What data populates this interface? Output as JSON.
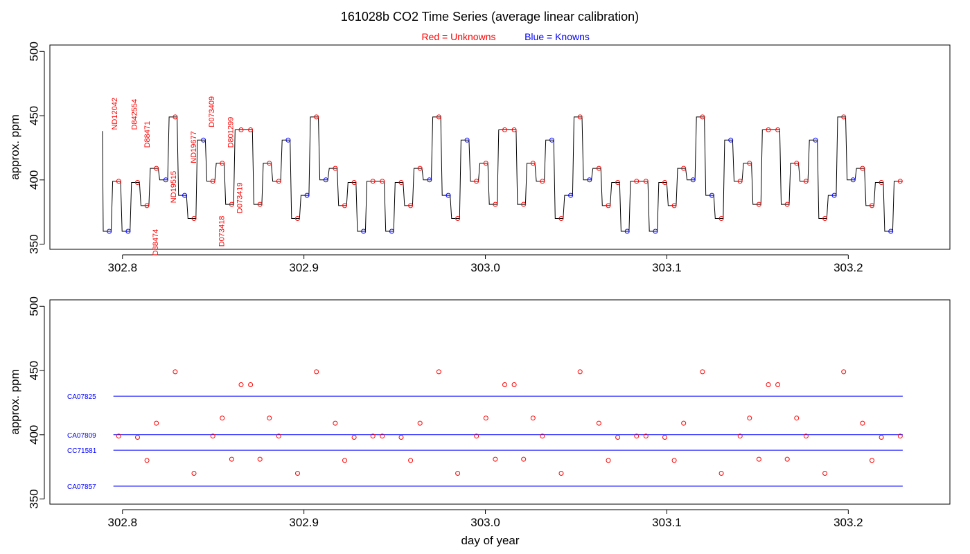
{
  "header": {
    "title": "161028b   CO2 Time Series (average linear calibration)",
    "legend_red_word": "Red",
    "legend_red_rest": " = Unknowns",
    "legend_blue_word": "Blue",
    "legend_blue_rest": " = Knowns",
    "red_color": "#ff0000",
    "blue_color": "#0000ff"
  },
  "chart_data": [
    {
      "type": "line",
      "panel": "top",
      "xlabel": "",
      "ylabel": "approx. ppm",
      "xlim": [
        302.76,
        303.256
      ],
      "ylim": [
        346,
        505
      ],
      "xticks": [
        302.8,
        302.9,
        303.0,
        303.1,
        303.2
      ],
      "xtick_labels": [
        "302.8",
        "302.9",
        "303.0",
        "303.1",
        "303.2"
      ],
      "yticks": [
        350,
        400,
        450,
        500
      ],
      "ytick_labels": [
        "350",
        "400",
        "450",
        "500"
      ],
      "trace_start": {
        "x": 302.789,
        "y": 438
      },
      "trace_levels": [
        360,
        399,
        360,
        398,
        380,
        409,
        400,
        449,
        388,
        370,
        431,
        399,
        413,
        381,
        439,
        439,
        381,
        413,
        399,
        431,
        370,
        388,
        449,
        400,
        409,
        380,
        398,
        360,
        399,
        399,
        360,
        398,
        380,
        409,
        400,
        449,
        388,
        370,
        431,
        399,
        413,
        381,
        439,
        439,
        381,
        413,
        399,
        431,
        370,
        388,
        449,
        400,
        409,
        380,
        398,
        360,
        399,
        399,
        360,
        398,
        380,
        409,
        400,
        449,
        388,
        370,
        431,
        399,
        413,
        381,
        439,
        439,
        381,
        413,
        399,
        431,
        370,
        388,
        449,
        400,
        409,
        380,
        398,
        360,
        399
      ],
      "level_kinds": [
        "K",
        "U",
        "K",
        "U",
        "U",
        "U",
        "K",
        "U",
        "K",
        "U",
        "K",
        "U",
        "U",
        "U",
        "U",
        "U",
        "U",
        "U",
        "U",
        "K",
        "U",
        "K",
        "U",
        "K",
        "U",
        "U",
        "U",
        "K",
        "U",
        "U",
        "K",
        "U",
        "U",
        "U",
        "K",
        "U",
        "K",
        "U",
        "K",
        "U",
        "U",
        "U",
        "U",
        "U",
        "U",
        "U",
        "U",
        "K",
        "U",
        "K",
        "U",
        "K",
        "U",
        "U",
        "U",
        "K",
        "U",
        "U",
        "K",
        "U",
        "U",
        "U",
        "K",
        "U",
        "K",
        "U",
        "K",
        "U",
        "U",
        "U",
        "U",
        "U",
        "U",
        "U",
        "U",
        "K",
        "U",
        "K",
        "U",
        "K",
        "U",
        "U",
        "U",
        "K",
        "U"
      ],
      "sample_labels": [
        {
          "text": "ND12042",
          "x": 302.797,
          "y": 439
        },
        {
          "text": "D842554",
          "x": 302.808,
          "y": 439
        },
        {
          "text": "D88471",
          "x": 302.815,
          "y": 425
        },
        {
          "text": "D88474",
          "x": 302.8195,
          "y": 341
        },
        {
          "text": "ND19515",
          "x": 302.8295,
          "y": 382
        },
        {
          "text": "ND19677",
          "x": 302.8405,
          "y": 413
        },
        {
          "text": "D073409",
          "x": 302.8505,
          "y": 441
        },
        {
          "text": "D073418",
          "x": 302.856,
          "y": 348
        },
        {
          "text": "D801299",
          "x": 302.861,
          "y": 425
        },
        {
          "text": "D073419",
          "x": 302.866,
          "y": 374
        }
      ]
    },
    {
      "type": "scatter",
      "panel": "bottom",
      "xlabel": "day of year",
      "ylabel": "approx. ppm",
      "xlim": [
        302.76,
        303.256
      ],
      "ylim": [
        346,
        505
      ],
      "xticks": [
        302.8,
        302.9,
        303.0,
        303.1,
        303.2
      ],
      "xtick_labels": [
        "302.8",
        "302.9",
        "303.0",
        "303.1",
        "303.2"
      ],
      "yticks": [
        350,
        400,
        450,
        500
      ],
      "ytick_labels": [
        "350",
        "400",
        "450",
        "500"
      ],
      "reference_lines": [
        {
          "label": "CA07825",
          "value": 430
        },
        {
          "label": "CA07809",
          "value": 400
        },
        {
          "label": "CC71581",
          "value": 388
        },
        {
          "label": "CA07857",
          "value": 360
        }
      ],
      "reference_x_range": [
        302.795,
        303.23
      ],
      "unknown_points": "same x/y as the unknown (U) plateau markers of the top panel"
    }
  ]
}
